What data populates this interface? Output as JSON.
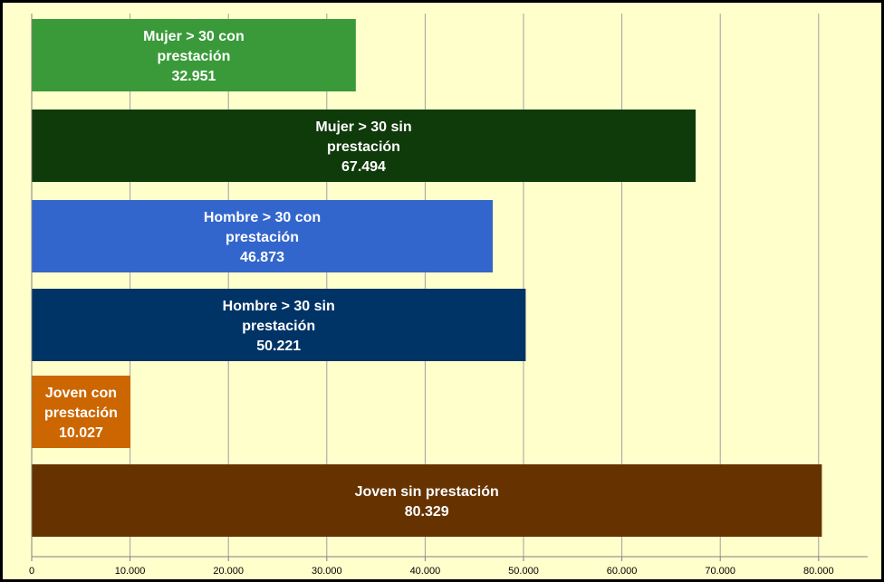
{
  "chart_data": {
    "type": "bar",
    "orientation": "horizontal",
    "title": "",
    "xlabel": "",
    "ylabel": "",
    "xlim": [
      0,
      85000
    ],
    "grid": true,
    "legend": "none",
    "ticks": [
      0,
      10000,
      20000,
      30000,
      40000,
      50000,
      60000,
      70000,
      80000
    ],
    "tick_labels": [
      "0",
      "10.000",
      "20.000",
      "30.000",
      "40.000",
      "50.000",
      "60.000",
      "70.000",
      "80.000"
    ],
    "bars": [
      {
        "label_lines": [
          "Mujer > 30 con",
          "prestación",
          "32.951"
        ],
        "value": 32951,
        "color": "#3a9a3a"
      },
      {
        "label_lines": [
          "Mujer > 30 sin",
          "prestación",
          "67.494"
        ],
        "value": 67494,
        "color": "#0f3a0a"
      },
      {
        "label_lines": [
          "Hombre > 30 con",
          "prestación",
          "46.873"
        ],
        "value": 46873,
        "color": "#3366cc"
      },
      {
        "label_lines": [
          "Hombre > 30 sin",
          "prestación",
          "50.221"
        ],
        "value": 50221,
        "color": "#003366"
      },
      {
        "label_lines": [
          "Joven con",
          "prestación",
          "10.027"
        ],
        "value": 10027,
        "color": "#cc6600"
      },
      {
        "label_lines": [
          "Joven sin prestación",
          "80.329"
        ],
        "value": 80329,
        "color": "#663300"
      }
    ]
  }
}
